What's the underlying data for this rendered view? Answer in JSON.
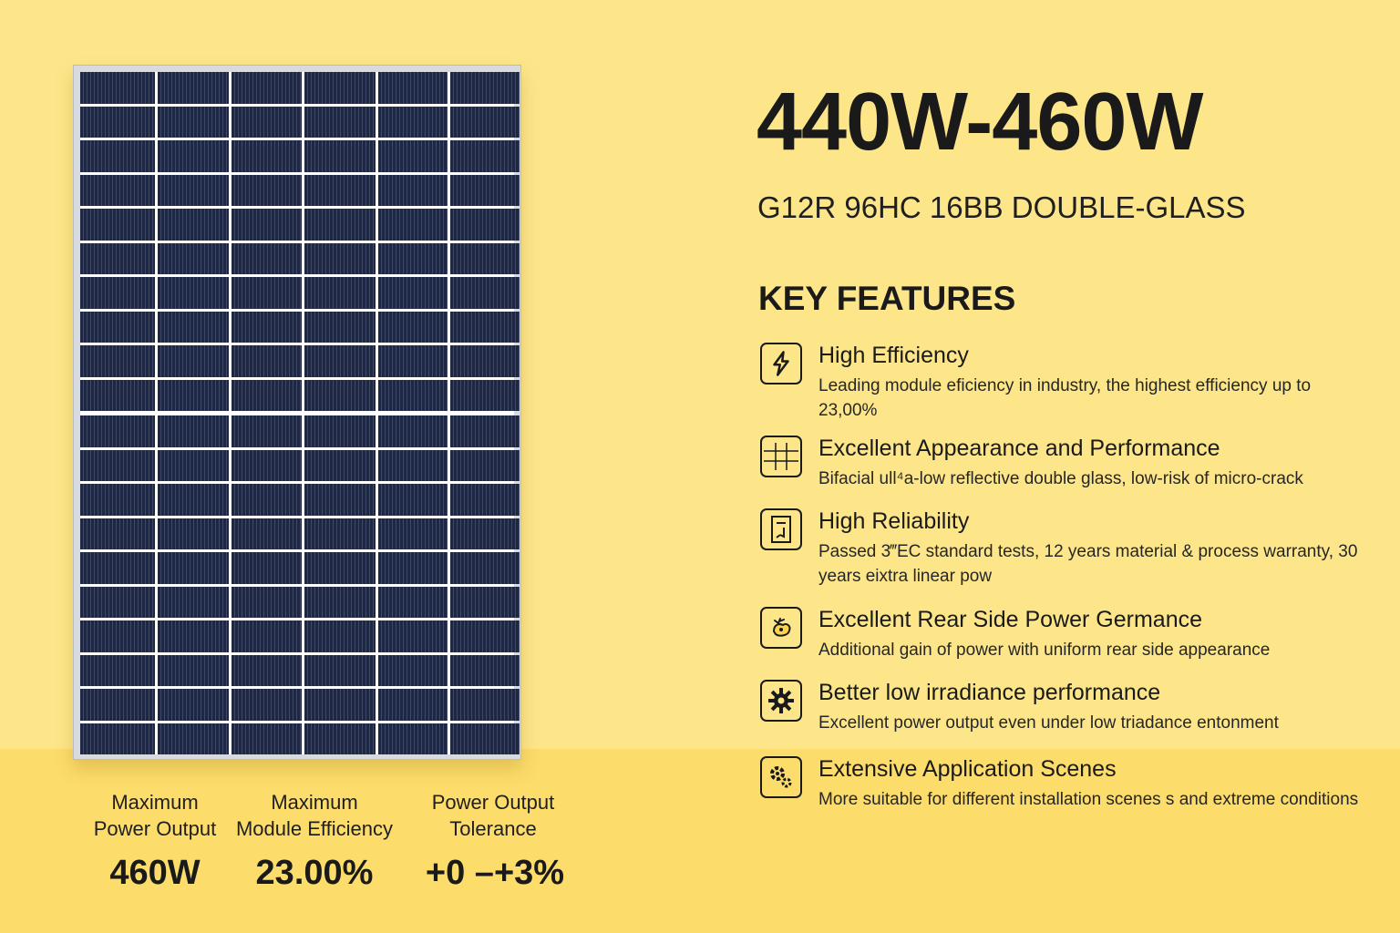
{
  "stats": [
    {
      "label_line1": "Maximum",
      "label_line2": "Power Output",
      "value": "460W"
    },
    {
      "label_line1": "Maximum",
      "label_line2": "Module Efficiency",
      "value": "23.00%"
    },
    {
      "label_line1": "Power Output",
      "label_line2": "Tolerance",
      "value": "+0 –+3%"
    }
  ],
  "title": "440W-460W",
  "subtitle": "G12R 96HC 16BB DOUBLE-GLASS",
  "features_heading": "KEY FEATURES",
  "features": [
    {
      "icon": "lightning-icon",
      "title": "High Efficiency",
      "description": "Leading module eficiency in industry, the highest efficiency up to 23,00%"
    },
    {
      "icon": "panel-grid-icon",
      "title": "Excellent Appearance and Performance",
      "description": "Bifacial ull⁴a-low reflective double glass, low-risk of micro-crack"
    },
    {
      "icon": "certificate-icon",
      "title": "High Reliability",
      "description": "Passed 3‴EC standard tests, 12 years material & process warranty, 30 years eixtra linear pow"
    },
    {
      "icon": "rear-side-icon",
      "title": "Excellent Rear Side Power Germance",
      "description": "Additional gain of power with uniform rear  side appearance"
    },
    {
      "icon": "gear-icon",
      "title": "Better low irradiance performance",
      "description": "Excellent power output even under low triadance entonment"
    },
    {
      "icon": "application-icon",
      "title": "Extensive Application Scenes",
      "description": "More suitable for different installation scenes s and extreme conditions"
    }
  ],
  "colors": {
    "background": "#fde68a",
    "bottom_band": "#fcdc6b",
    "cell": "#1e2744",
    "frame": "#d7dade",
    "text": "#1a1a1a"
  }
}
